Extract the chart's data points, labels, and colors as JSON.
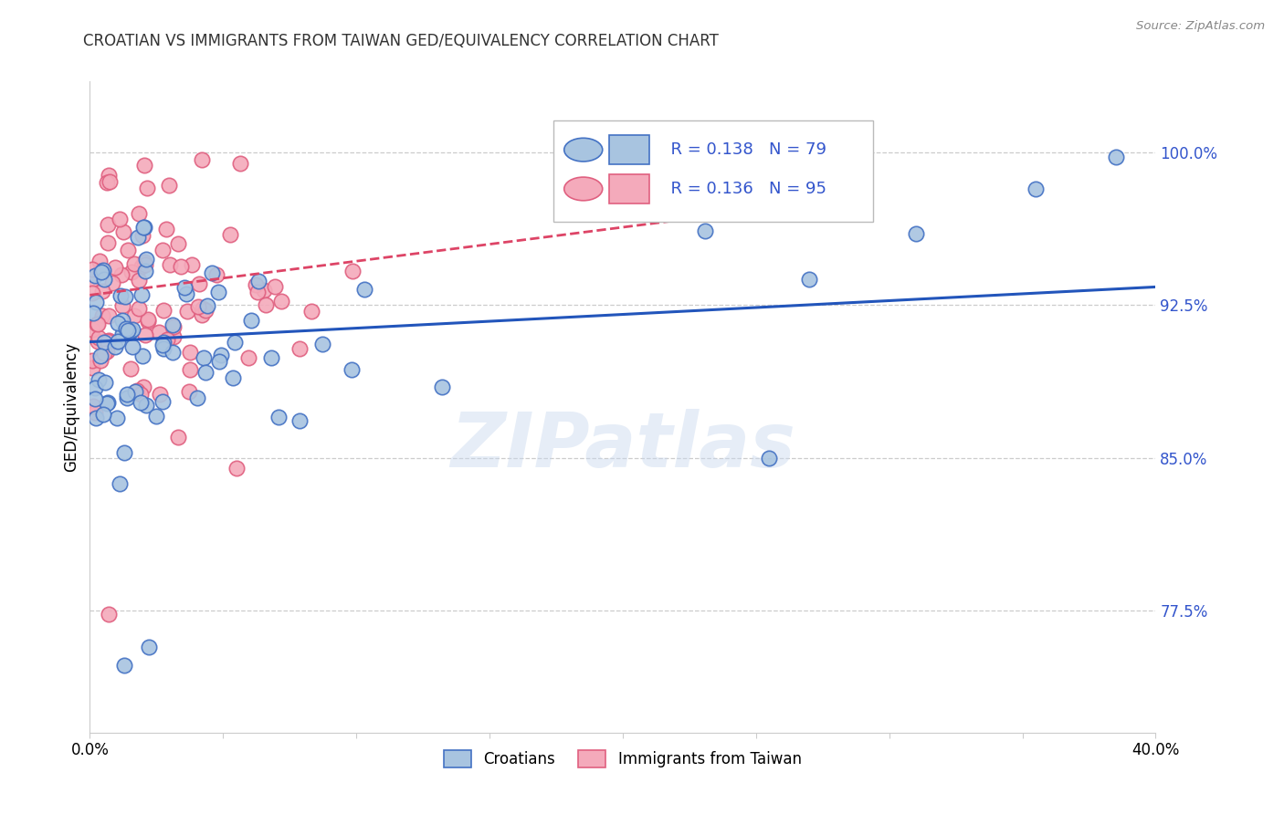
{
  "title": "CROATIAN VS IMMIGRANTS FROM TAIWAN GED/EQUIVALENCY CORRELATION CHART",
  "source": "Source: ZipAtlas.com",
  "ylabel": "GED/Equivalency",
  "legend_blue_r": "R = 0.138",
  "legend_blue_n": "N = 79",
  "legend_pink_r": "R = 0.136",
  "legend_pink_n": "N = 95",
  "blue_face": "#A8C4E0",
  "blue_edge": "#4472C4",
  "pink_face": "#F4AABB",
  "pink_edge": "#E06080",
  "blue_line": "#2255BB",
  "pink_line": "#DD4466",
  "text_blue": "#3355CC",
  "text_pink": "#CC3366",
  "watermark": "ZIPatlas",
  "xmin": 0.0,
  "xmax": 0.4,
  "ymin": 0.715,
  "ymax": 1.035,
  "ytick_vals": [
    0.775,
    0.85,
    0.925,
    1.0
  ],
  "ytick_labels": [
    "77.5%",
    "85.0%",
    "92.5%",
    "100.0%"
  ],
  "blue_line_x0": 0.0,
  "blue_line_x1": 0.4,
  "blue_line_y0": 0.907,
  "blue_line_y1": 0.934,
  "pink_line_x0": 0.0,
  "pink_line_x1": 0.27,
  "pink_line_y0": 0.93,
  "pink_line_y1": 0.975
}
